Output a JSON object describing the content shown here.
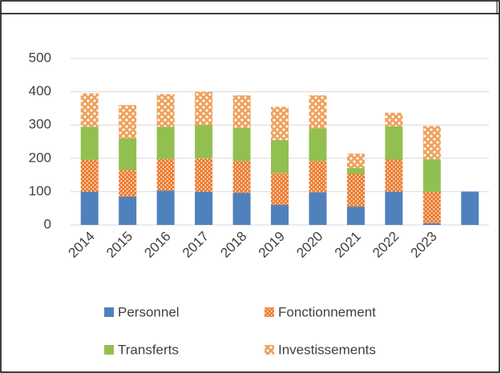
{
  "chart_data": {
    "type": "bar",
    "stacked": true,
    "categories": [
      "2014",
      "2015",
      "2016",
      "2017",
      "2018",
      "2019",
      "2020",
      "2021",
      "2022",
      "2023",
      null
    ],
    "series": [
      {
        "name": "Personnel",
        "color": "#4f81bd",
        "pattern": "solid",
        "values": [
          100,
          85,
          103,
          100,
          96,
          60,
          98,
          55,
          100,
          5,
          100
        ]
      },
      {
        "name": "Fonctionnement",
        "color": "#ed7d31",
        "pattern": "dots",
        "values": [
          95,
          80,
          95,
          100,
          96,
          96,
          94,
          99,
          96,
          94,
          0
        ]
      },
      {
        "name": "Transferts",
        "color": "#92c050",
        "pattern": "solid",
        "values": [
          100,
          95,
          97,
          100,
          99,
          99,
          98,
          17,
          100,
          98,
          0
        ]
      },
      {
        "name": "Investissements",
        "color": "#f0a05a",
        "pattern": "large-dots",
        "values": [
          100,
          100,
          98,
          100,
          98,
          100,
          99,
          43,
          41,
          100,
          0
        ]
      }
    ],
    "ylim": [
      0,
      500
    ],
    "yticks": [
      0,
      100,
      200,
      300,
      400,
      500
    ],
    "grid": true,
    "legend": "bottom"
  }
}
